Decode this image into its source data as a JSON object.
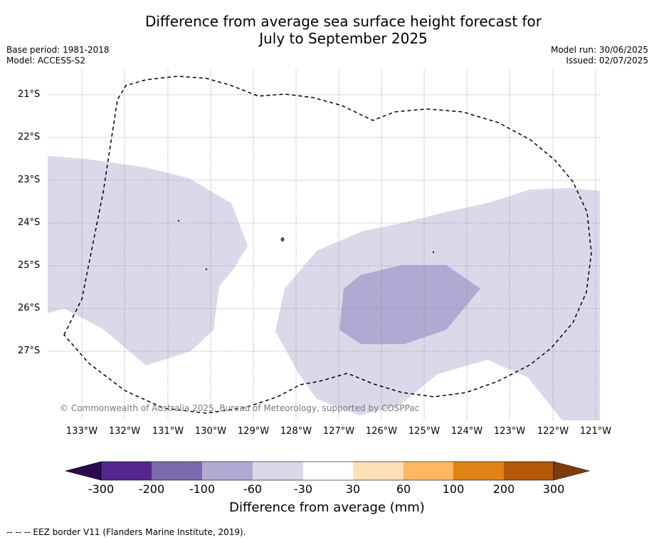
{
  "title_line1": "Difference from average sea surface height forecast for",
  "title_line2": "July to September 2025",
  "base_period": "Base period: 1981-2018",
  "model": "Model: ACCESS-S2",
  "model_run": "Model run: 30/06/2025",
  "issued": "Issued: 02/07/2025",
  "latitude_labels": [
    "21°S",
    "22°S",
    "23°S",
    "24°S",
    "25°S",
    "26°S",
    "27°S"
  ],
  "longitude_labels": [
    "133°W",
    "132°W",
    "131°W",
    "130°W",
    "129°W",
    "128°W",
    "127°W",
    "126°W",
    "125°W",
    "124°W",
    "123°W",
    "122°W",
    "121°W"
  ],
  "copyright": "© Commonwealth of Australia 2025, Bureau of Meteorology, supported by COSPPac",
  "colorbar": {
    "ticks": [
      "-300",
      "-200",
      "-100",
      "-60",
      "-30",
      "30",
      "60",
      "100",
      "200",
      "300"
    ],
    "colors": [
      "#2d0a4e",
      "#54278f",
      "#7b6aab",
      "#b0a9d1",
      "#d9d9ea",
      "#ffffff",
      "#fee0b6",
      "#fdb762",
      "#e08214",
      "#b35806",
      "#7f3b08"
    ],
    "label": "Difference from average (mm)"
  },
  "legend": {
    "eez": "--  --  -- EEZ border V11 (Flanders Marine Institute, 2019)."
  }
}
